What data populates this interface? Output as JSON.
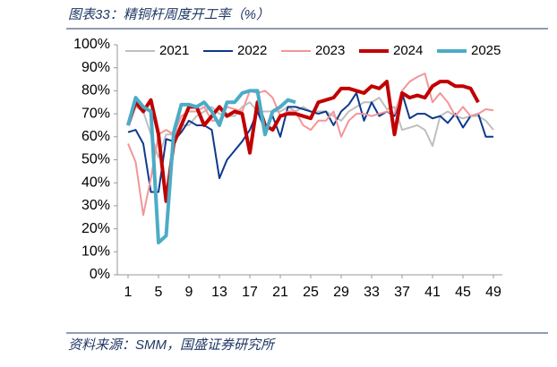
{
  "title": "图表33：精铜杆周度开工率（%）",
  "source": "资料来源：SMM，国盛证券研究所",
  "chart_data": {
    "type": "line",
    "x": [
      1,
      2,
      3,
      4,
      5,
      6,
      7,
      8,
      9,
      10,
      11,
      12,
      13,
      14,
      15,
      16,
      17,
      18,
      19,
      20,
      21,
      22,
      23,
      24,
      25,
      26,
      27,
      28,
      29,
      30,
      31,
      32,
      33,
      34,
      35,
      36,
      37,
      38,
      39,
      40,
      41,
      42,
      43,
      44,
      45,
      46,
      47,
      48,
      49
    ],
    "xlim": [
      0,
      50
    ],
    "xticks": [
      1,
      5,
      9,
      13,
      17,
      21,
      25,
      29,
      33,
      37,
      41,
      45,
      49
    ],
    "ylim": [
      0,
      100
    ],
    "yticks": [
      {
        "value": 0,
        "label": "0%"
      },
      {
        "value": 10,
        "label": "10%"
      },
      {
        "value": 20,
        "label": "20%"
      },
      {
        "value": 30,
        "label": "30%"
      },
      {
        "value": 40,
        "label": "40%"
      },
      {
        "value": 50,
        "label": "50%"
      },
      {
        "value": 60,
        "label": "60%"
      },
      {
        "value": 70,
        "label": "70%"
      },
      {
        "value": 80,
        "label": "80%"
      },
      {
        "value": 90,
        "label": "90%"
      },
      {
        "value": 100,
        "label": "100%"
      }
    ],
    "legend": "top",
    "series": [
      {
        "name": "2021",
        "color": "#bfbfbf",
        "values": [
          65,
          73,
          71,
          61,
          51,
          61,
          61,
          65,
          65,
          69,
          71,
          73,
          70,
          69,
          69,
          73,
          75,
          71,
          71,
          71,
          71,
          73,
          71,
          73,
          71,
          71,
          71,
          69,
          67,
          71,
          73,
          75,
          75,
          77,
          72,
          73,
          63,
          64,
          65,
          63,
          56,
          69,
          71,
          69,
          68,
          69,
          69,
          67,
          63
        ]
      },
      {
        "name": "2022",
        "color": "#0d3a8c",
        "values": [
          62,
          63,
          57,
          36,
          36,
          59,
          58,
          62,
          67,
          65,
          65,
          63,
          42,
          50,
          54,
          58,
          63,
          71,
          63,
          69,
          60,
          73,
          73,
          72,
          71,
          70,
          71,
          65,
          71,
          74,
          79,
          67,
          75,
          69,
          71,
          69,
          79,
          68,
          70,
          70,
          68,
          69,
          66,
          70,
          64,
          69,
          70,
          60,
          60
        ]
      },
      {
        "name": "2023",
        "color": "#f4959a",
        "values": [
          57,
          49,
          26,
          42,
          61,
          63,
          61,
          69,
          71,
          71,
          73,
          67,
          67,
          73,
          72,
          71,
          80,
          79,
          80,
          77,
          69,
          71,
          71,
          65,
          63,
          67,
          67,
          71,
          60,
          67,
          70,
          70,
          69,
          70,
          71,
          70,
          80,
          84,
          86,
          87.5,
          75,
          79,
          75,
          69,
          73,
          69,
          70,
          72,
          71.5
        ]
      },
      {
        "name": "2024",
        "color": "#c00000",
        "values": [
          65,
          75,
          71,
          76,
          61,
          32,
          57,
          65,
          73,
          73,
          65,
          69,
          73,
          69,
          71,
          70,
          53,
          75,
          65,
          63,
          69,
          70,
          70,
          69,
          68,
          75,
          76,
          77,
          81,
          81,
          80,
          79,
          82,
          81,
          84,
          61,
          79,
          77,
          78,
          77,
          82,
          84,
          84,
          82,
          82,
          81,
          75,
          null,
          null
        ]
      },
      {
        "name": "2025",
        "color": "#4bacc6",
        "values": [
          65,
          77,
          73,
          71,
          14,
          17,
          62,
          74,
          74,
          73,
          75,
          71,
          65,
          75,
          75,
          79,
          80,
          80,
          61,
          71,
          73,
          76,
          75,
          null,
          null,
          null,
          null,
          null,
          null,
          null,
          null,
          null,
          null,
          null,
          null,
          null,
          null,
          null,
          null,
          null,
          null,
          null,
          null,
          null,
          null,
          null,
          null,
          null,
          null
        ]
      }
    ]
  }
}
